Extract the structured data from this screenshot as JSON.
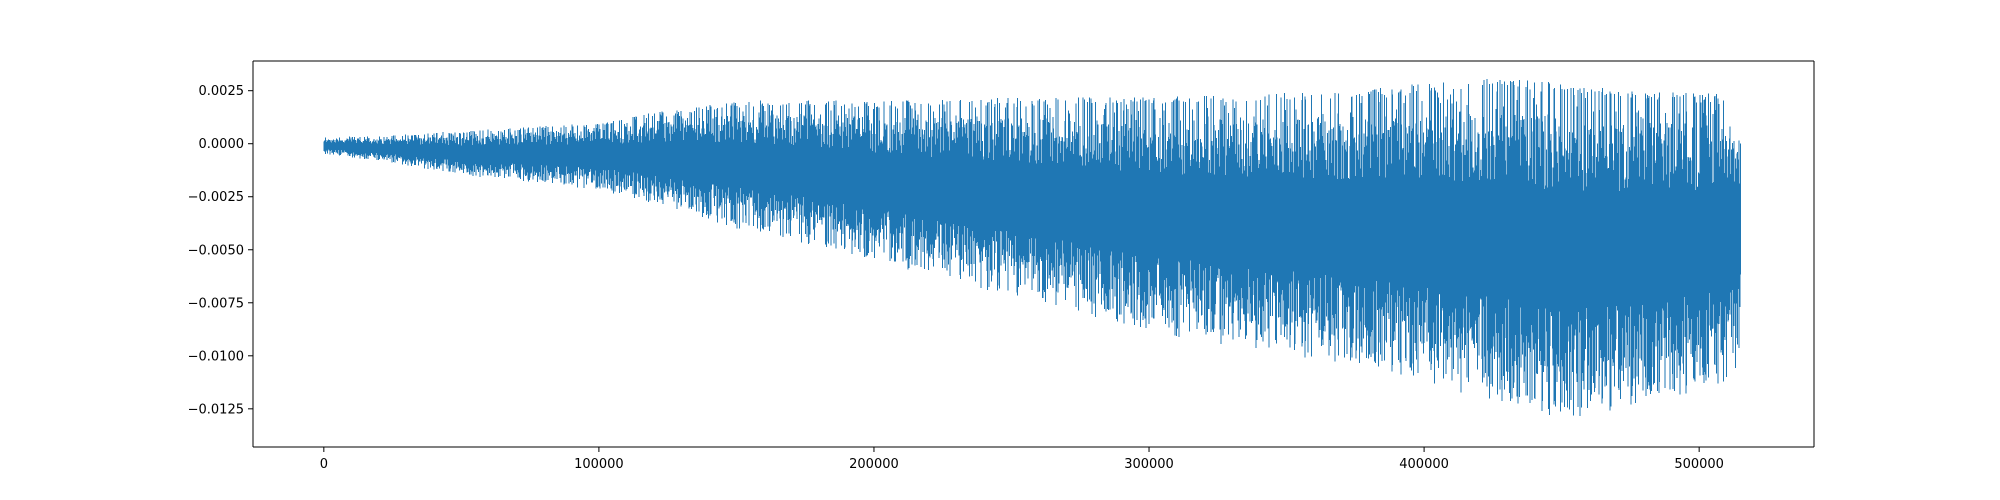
{
  "chart_data": {
    "type": "line",
    "title": "",
    "xlabel": "",
    "ylabel": "",
    "series_color": "#1f77b4",
    "grid": false,
    "legend": "none",
    "xlim": [
      -25750,
      541750
    ],
    "ylim": [
      -0.0143,
      0.0039
    ],
    "x_ticks": [
      0,
      100000,
      200000,
      300000,
      400000,
      500000
    ],
    "x_tick_labels": [
      "0",
      "100000",
      "200000",
      "300000",
      "400000",
      "500000"
    ],
    "y_ticks": [
      0.0025,
      0.0,
      -0.0025,
      -0.005,
      -0.0075,
      -0.01,
      -0.0125
    ],
    "y_tick_labels": [
      "0.0025",
      "0.0000",
      "−0.0025",
      "−0.0050",
      "−0.0075",
      "−0.0100",
      "−0.0125"
    ],
    "series": [
      {
        "x_start": 0,
        "x_end": 515000,
        "envelope": {
          "x": [
            0,
            25000,
            50000,
            75000,
            100000,
            125000,
            150000,
            175000,
            200000,
            225000,
            250000,
            275000,
            300000,
            325000,
            350000,
            375000,
            400000,
            425000,
            450000,
            475000,
            500000,
            515000
          ],
          "upper": [
            0.0003,
            0.0004,
            0.0006,
            0.0008,
            0.001,
            0.0016,
            0.002,
            0.0021,
            0.002,
            0.0021,
            0.0022,
            0.0022,
            0.0022,
            0.0023,
            0.0024,
            0.0025,
            0.0029,
            0.0031,
            0.0029,
            0.0025,
            0.0024,
            0.0023
          ],
          "lower": [
            -0.0005,
            -0.0009,
            -0.0015,
            -0.0018,
            -0.0022,
            -0.003,
            -0.004,
            -0.0047,
            -0.0055,
            -0.0064,
            -0.0072,
            -0.008,
            -0.0088,
            -0.0095,
            -0.01,
            -0.0106,
            -0.0113,
            -0.0121,
            -0.013,
            -0.0124,
            -0.0117,
            -0.0112
          ]
        }
      }
    ]
  }
}
